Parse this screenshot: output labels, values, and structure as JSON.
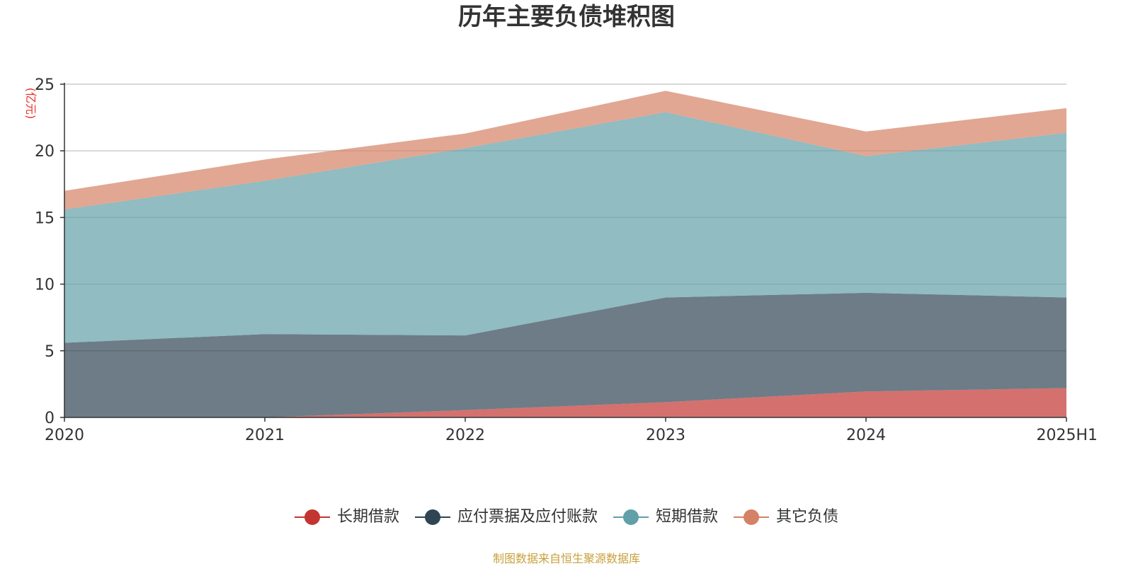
{
  "title": "历年主要负债堆积图",
  "footer": "制图数据来自恒生聚源数据库",
  "chart_data": {
    "type": "area",
    "stacked": true,
    "title": "历年主要负债堆积图",
    "ylabel": "(亿元)",
    "xlabel": "",
    "categories": [
      "2020",
      "2021",
      "2022",
      "2023",
      "2024",
      "2025H1"
    ],
    "ylim": [
      0,
      25
    ],
    "yticks": [
      "0",
      "5",
      "10",
      "15",
      "20",
      "25"
    ],
    "grid": true,
    "legend_position": "bottom",
    "series": [
      {
        "name": "长期借款",
        "color": "#c23531",
        "values": [
          0,
          0,
          0.55,
          1.15,
          1.95,
          2.2
        ]
      },
      {
        "name": "应付票据及应付账款",
        "color": "#2f4554",
        "values": [
          5.6,
          6.25,
          5.6,
          7.85,
          7.4,
          6.8
        ]
      },
      {
        "name": "短期借款",
        "color": "#61a0a8",
        "values": [
          10.0,
          11.5,
          14.05,
          13.9,
          10.25,
          12.35
        ]
      },
      {
        "name": "其它负债",
        "color": "#d48265",
        "values": [
          1.4,
          1.6,
          1.1,
          1.6,
          1.85,
          1.85
        ]
      }
    ]
  }
}
